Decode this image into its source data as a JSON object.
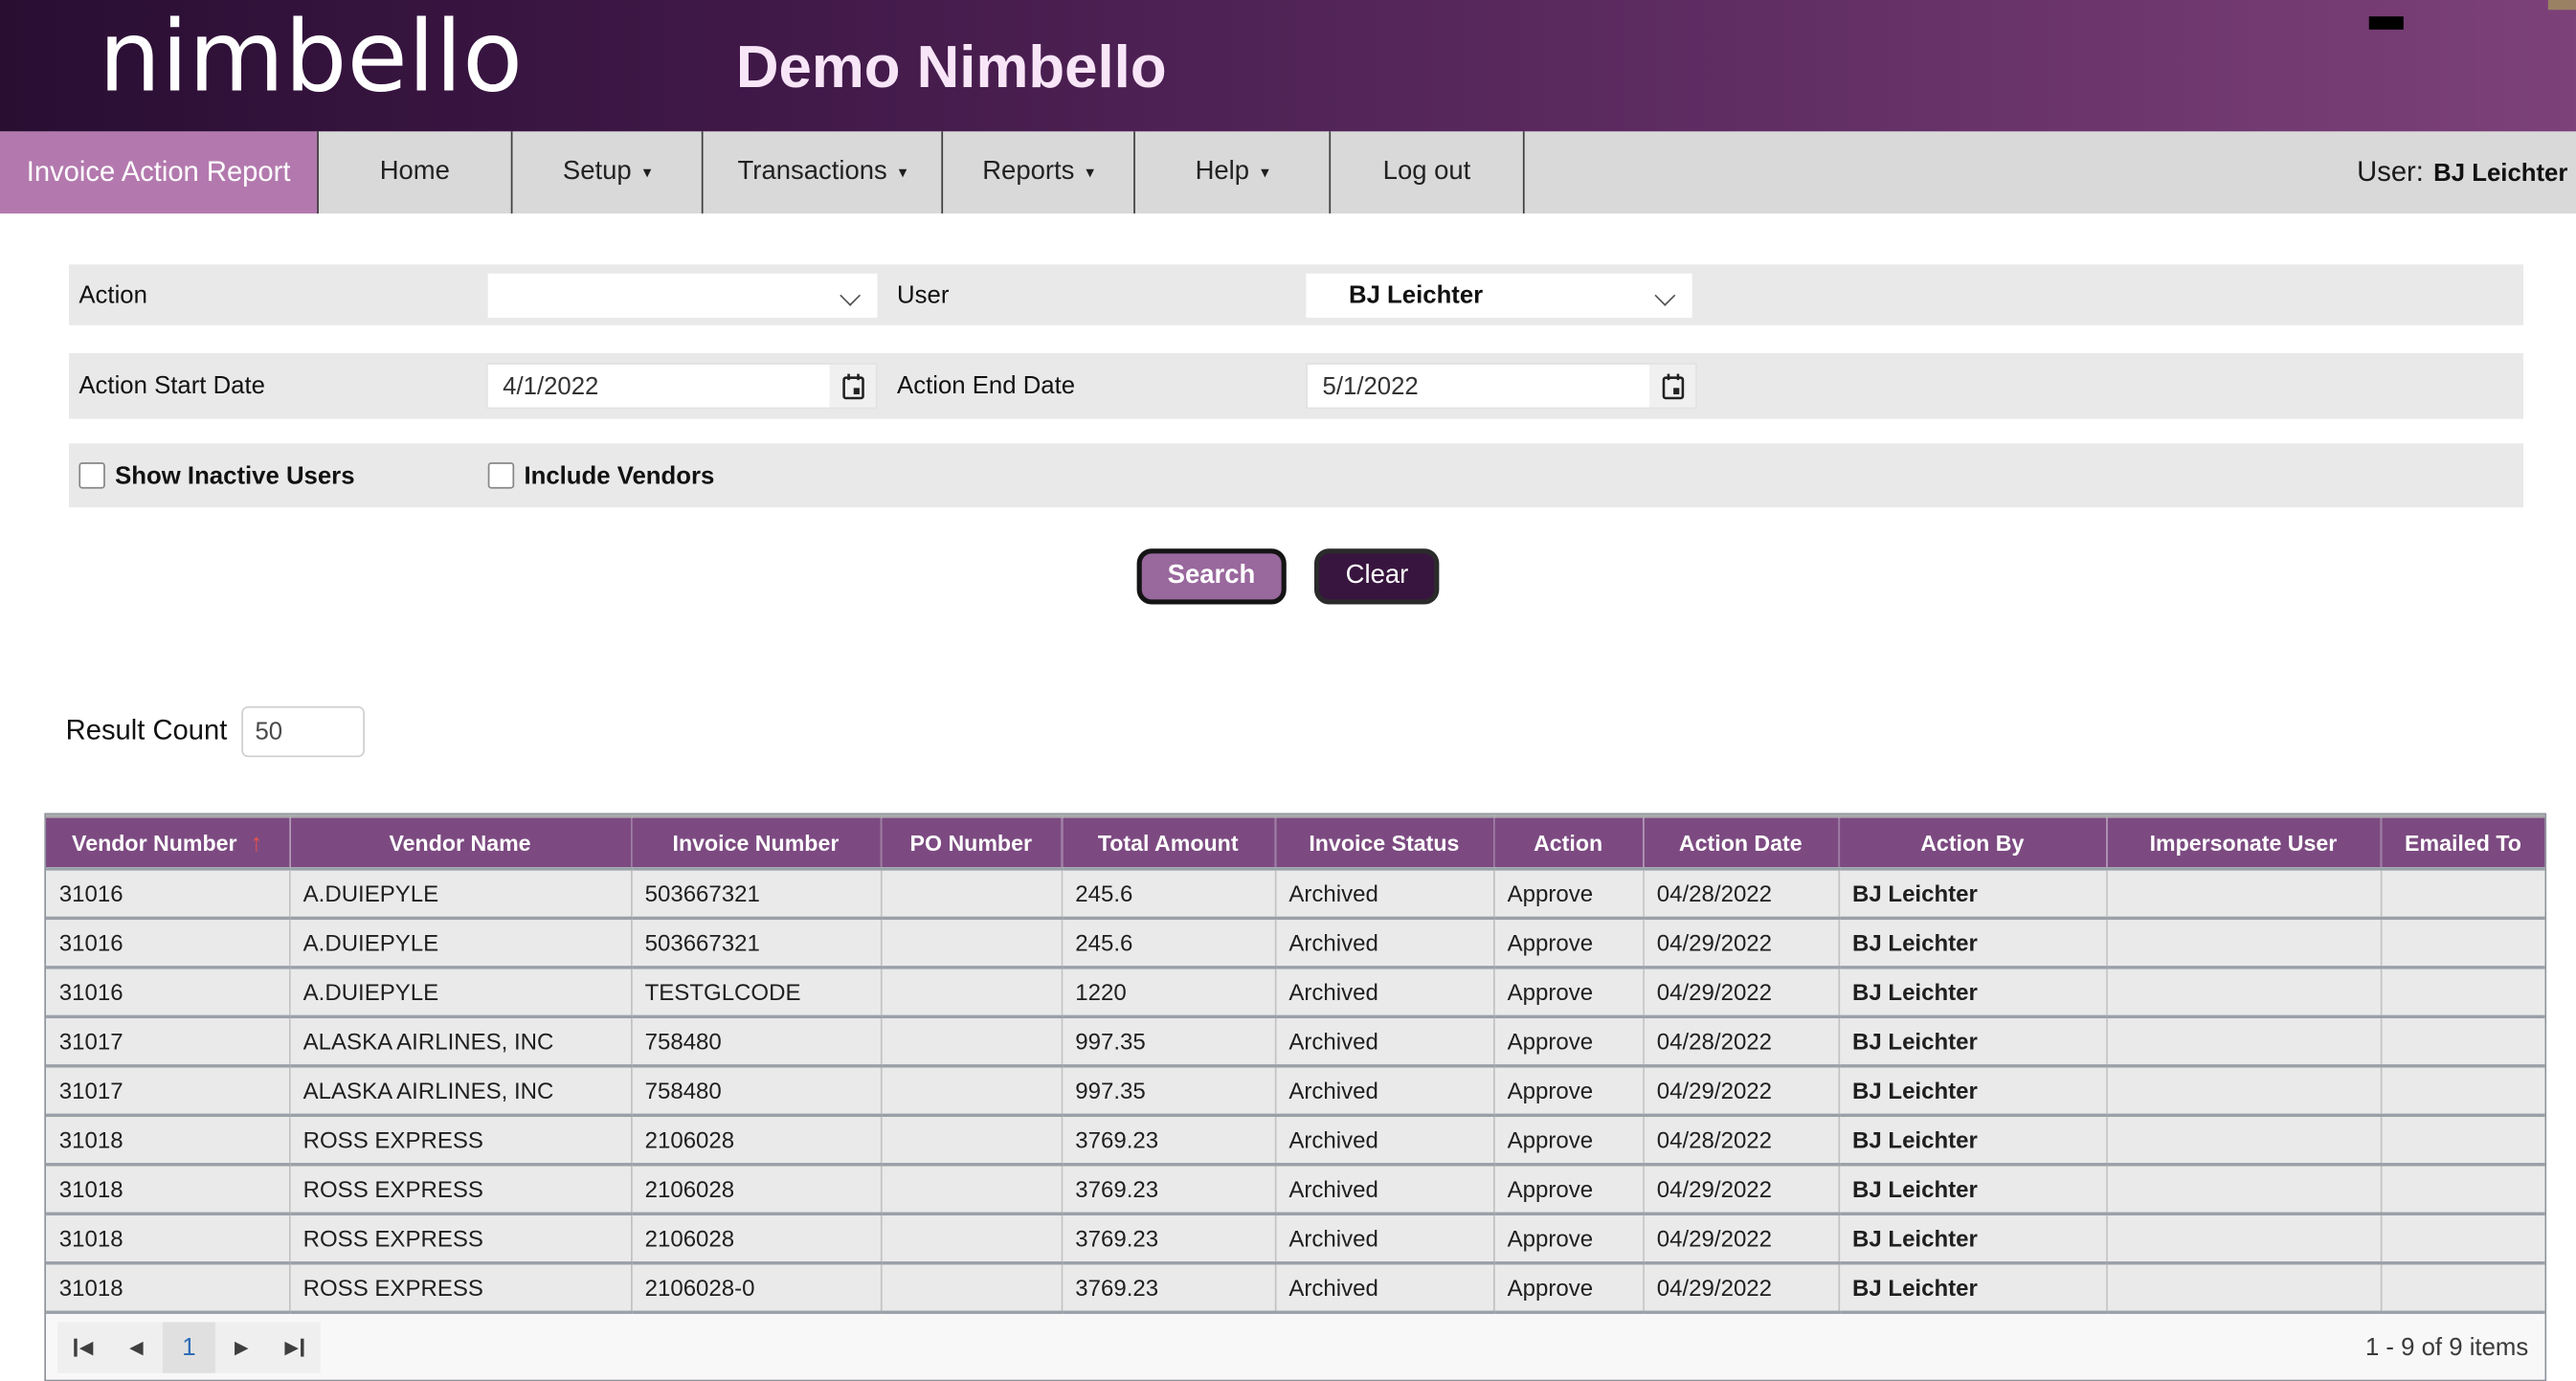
{
  "header": {
    "logo_text": "nimbello",
    "app_title": "Demo Nimbello"
  },
  "nav": {
    "tabs": [
      {
        "label": "Invoice Action Report",
        "active": true,
        "has_dropdown": false
      },
      {
        "label": "Home",
        "active": false,
        "has_dropdown": false
      },
      {
        "label": "Setup",
        "active": false,
        "has_dropdown": true
      },
      {
        "label": "Transactions",
        "active": false,
        "has_dropdown": true
      },
      {
        "label": "Reports",
        "active": false,
        "has_dropdown": true
      },
      {
        "label": "Help",
        "active": false,
        "has_dropdown": true
      },
      {
        "label": "Log out",
        "active": false,
        "has_dropdown": false
      }
    ],
    "user_label": "User:",
    "user_name": "BJ Leichter"
  },
  "filters": {
    "action_label": "Action",
    "action_value": "",
    "user_label": "User",
    "user_value": "BJ Leichter",
    "start_date_label": "Action Start Date",
    "start_date_value": "4/1/2022",
    "end_date_label": "Action End Date",
    "end_date_value": "5/1/2022",
    "show_inactive_label": "Show Inactive Users",
    "show_inactive_checked": false,
    "include_vendors_label": "Include Vendors",
    "include_vendors_checked": false
  },
  "actions": {
    "search_label": "Search",
    "clear_label": "Clear"
  },
  "result_count": {
    "label": "Result Count",
    "value": "50"
  },
  "table": {
    "columns": [
      "Vendor Number",
      "Vendor Name",
      "Invoice Number",
      "PO Number",
      "Total Amount",
      "Invoice Status",
      "Action",
      "Action Date",
      "Action By",
      "Impersonate User",
      "Emailed To"
    ],
    "sort": {
      "column": "Vendor Number",
      "direction": "ascending"
    },
    "bold_column": "Action By",
    "rows": [
      [
        "31016",
        "A.DUIEPYLE",
        "503667321",
        "",
        "245.6",
        "Archived",
        "Approve",
        "04/28/2022",
        "BJ Leichter",
        "",
        ""
      ],
      [
        "31016",
        "A.DUIEPYLE",
        "503667321",
        "",
        "245.6",
        "Archived",
        "Approve",
        "04/29/2022",
        "BJ Leichter",
        "",
        ""
      ],
      [
        "31016",
        "A.DUIEPYLE",
        "TESTGLCODE",
        "",
        "1220",
        "Archived",
        "Approve",
        "04/29/2022",
        "BJ Leichter",
        "",
        ""
      ],
      [
        "31017",
        "ALASKA AIRLINES, INC",
        "758480",
        "",
        "997.35",
        "Archived",
        "Approve",
        "04/28/2022",
        "BJ Leichter",
        "",
        ""
      ],
      [
        "31017",
        "ALASKA AIRLINES, INC",
        "758480",
        "",
        "997.35",
        "Archived",
        "Approve",
        "04/29/2022",
        "BJ Leichter",
        "",
        ""
      ],
      [
        "31018",
        "ROSS EXPRESS",
        "2106028",
        "",
        "3769.23",
        "Archived",
        "Approve",
        "04/28/2022",
        "BJ Leichter",
        "",
        ""
      ],
      [
        "31018",
        "ROSS EXPRESS",
        "2106028",
        "",
        "3769.23",
        "Archived",
        "Approve",
        "04/29/2022",
        "BJ Leichter",
        "",
        ""
      ],
      [
        "31018",
        "ROSS EXPRESS",
        "2106028",
        "",
        "3769.23",
        "Archived",
        "Approve",
        "04/29/2022",
        "BJ Leichter",
        "",
        ""
      ],
      [
        "31018",
        "ROSS EXPRESS",
        "2106028-0",
        "",
        "3769.23",
        "Archived",
        "Approve",
        "04/29/2022",
        "BJ Leichter",
        "",
        ""
      ]
    ]
  },
  "pager": {
    "current_page": "1",
    "summary": "1 - 9 of 9 items"
  },
  "colors": {
    "header_gradient_start": "#290e32",
    "header_gradient_end": "#7c4179",
    "active_tab": "#b379ae",
    "table_header": "#7c4a81",
    "sort_arrow": "#e4534e",
    "search_button": "#99689d",
    "clear_button": "#38153f",
    "page_number": "#2e6db6"
  }
}
